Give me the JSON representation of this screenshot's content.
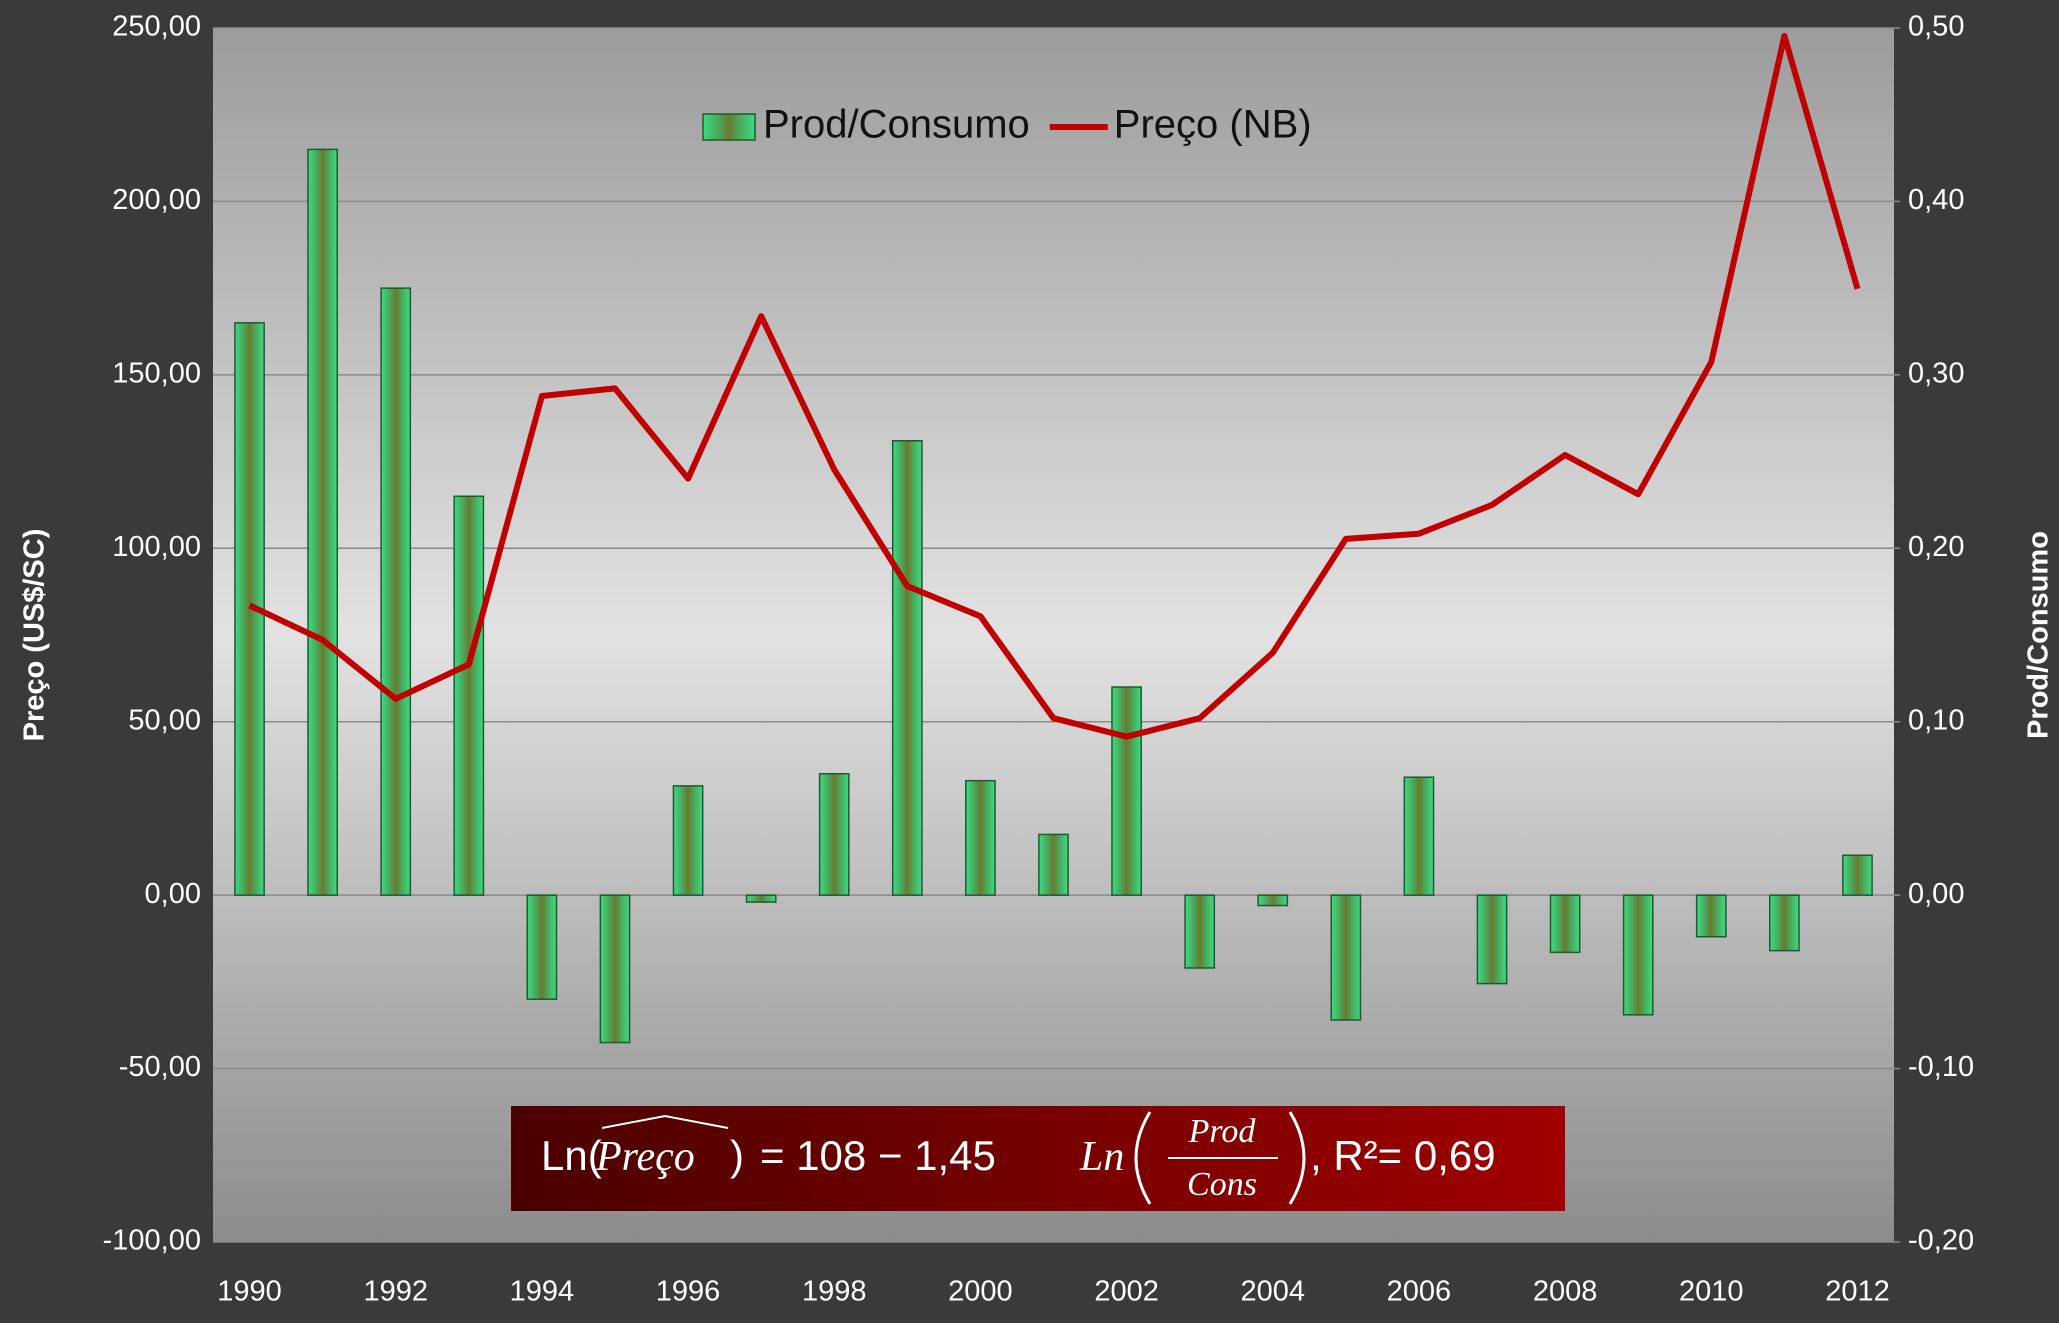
{
  "chart_data": {
    "type": "bar-line",
    "categories": [
      "1990",
      null,
      "1992",
      null,
      "1994",
      null,
      "1996",
      null,
      "1998",
      null,
      "2000",
      null,
      "2002",
      null,
      "2004",
      null,
      "2006",
      null,
      "2008",
      null,
      "2010",
      null,
      "2012"
    ],
    "series": [
      {
        "name": "Prod/Consumo",
        "type": "bar",
        "axis": "y2",
        "color": "#3ddc84",
        "values": [
          0.33,
          0.43,
          0.35,
          0.23,
          -0.06,
          -0.085,
          0.063,
          -0.004,
          0.07,
          0.262,
          0.066,
          0.035,
          0.12,
          -0.042,
          -0.006,
          -0.072,
          0.068,
          -0.051,
          -0.033,
          -0.069,
          -0.024,
          -0.032,
          0.023
        ]
      },
      {
        "name": "Preço (NB)",
        "type": "line",
        "axis": "y",
        "color": "#c00000",
        "values": [
          83.5,
          73.6,
          56.6,
          66.5,
          143.9,
          146.1,
          120.1,
          166.9,
          122.7,
          89.1,
          80.4,
          51.0,
          45.7,
          51.0,
          69.9,
          102.7,
          104.2,
          112.5,
          126.9,
          115.6,
          153.7,
          247.7,
          174.8
        ]
      }
    ],
    "ylabel": "Preço (US$/SC)",
    "y2label": "Prod/Consumo",
    "ylim": [
      -100,
      250
    ],
    "yticks": [
      {
        "value": -100,
        "label": "-100,00"
      },
      {
        "value": -50,
        "label": "-50,00"
      },
      {
        "value": 0,
        "label": "0,00"
      },
      {
        "value": 50,
        "label": "50,00"
      },
      {
        "value": 100,
        "label": "100,00"
      },
      {
        "value": 150,
        "label": "150,00"
      },
      {
        "value": 200,
        "label": "200,00"
      },
      {
        "value": 250,
        "label": "250,00"
      }
    ],
    "y2lim": [
      -0.2,
      0.5
    ],
    "y2ticks": [
      {
        "value": -0.2,
        "label": "-0,20"
      },
      {
        "value": -0.1,
        "label": "-0,10"
      },
      {
        "value": 0,
        "label": "0,00"
      },
      {
        "value": 0.1,
        "label": "0,10"
      },
      {
        "value": 0.2,
        "label": "0,20"
      },
      {
        "value": 0.3,
        "label": "0,30"
      },
      {
        "value": 0.4,
        "label": "0,40"
      },
      {
        "value": 0.5,
        "label": "0,50"
      }
    ],
    "grid": true,
    "legend": "top",
    "annotation": {
      "lhs_func": "Ln(",
      "lhs_var": "Preço",
      "lhs_close": ")",
      "rhs": "=  108 − 1,45",
      "rhs_func": "Ln",
      "numerator": "Prod",
      "denominator": "Cons",
      "fit": ",   R²= 0,69"
    }
  }
}
